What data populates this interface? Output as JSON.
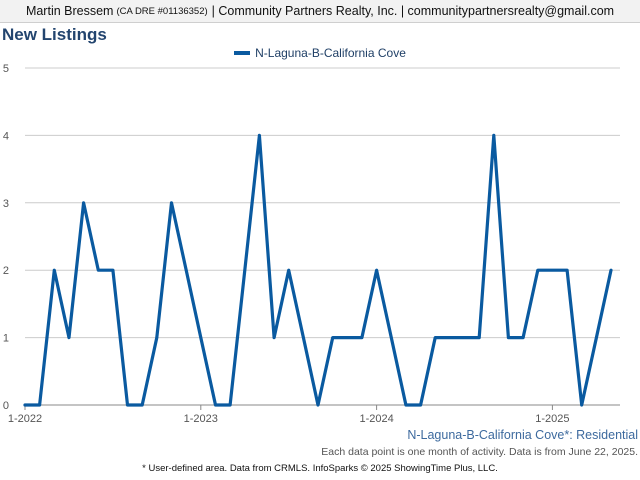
{
  "header": {
    "agent_name": "Martin Bressem",
    "license": "(CA DRE #01136352)",
    "brokerage": "| Community Partners Realty, Inc. | communitypartnersrealty@gmail.com"
  },
  "title": "New Listings",
  "source_label": "N-Laguna-B-California Cove*: Residential",
  "note": "Each data point is one month of activity. Data is from June 22, 2025.",
  "footer": "* User-defined area. Data from CRMLS. InfoSparks © 2025 ShowingTime Plus, LLC.",
  "colors": {
    "series": "#0a5aa0",
    "grid": "#cccccc",
    "title": "#23456f"
  },
  "chart_data": {
    "type": "line",
    "x": [
      "2022-01",
      "2022-02",
      "2022-03",
      "2022-04",
      "2022-05",
      "2022-06",
      "2022-07",
      "2022-08",
      "2022-09",
      "2022-10",
      "2022-11",
      "2022-12",
      "2023-01",
      "2023-02",
      "2023-03",
      "2023-04",
      "2023-05",
      "2023-06",
      "2023-07",
      "2023-08",
      "2023-09",
      "2023-10",
      "2023-11",
      "2023-12",
      "2024-01",
      "2024-02",
      "2024-03",
      "2024-04",
      "2024-05",
      "2024-06",
      "2024-07",
      "2024-08",
      "2024-09",
      "2024-10",
      "2024-11",
      "2024-12",
      "2025-01",
      "2025-02",
      "2025-03",
      "2025-04",
      "2025-05"
    ],
    "series": [
      {
        "name": "N-Laguna-B-California Cove",
        "values": [
          0,
          0,
          2,
          1,
          3,
          2,
          2,
          0,
          0,
          1,
          3,
          2,
          1,
          0,
          0,
          2,
          4,
          1,
          2,
          1,
          0,
          1,
          1,
          1,
          2,
          1,
          0,
          0,
          1,
          1,
          1,
          1,
          4,
          1,
          1,
          2,
          2,
          2,
          0,
          1,
          2
        ]
      }
    ],
    "xticks": [
      "1-2022",
      "1-2023",
      "1-2024",
      "1-2025"
    ],
    "yticks": [
      0,
      1,
      2,
      3,
      4,
      5
    ],
    "ylim": [
      0,
      5
    ],
    "grid": true,
    "legend": "top-center"
  }
}
